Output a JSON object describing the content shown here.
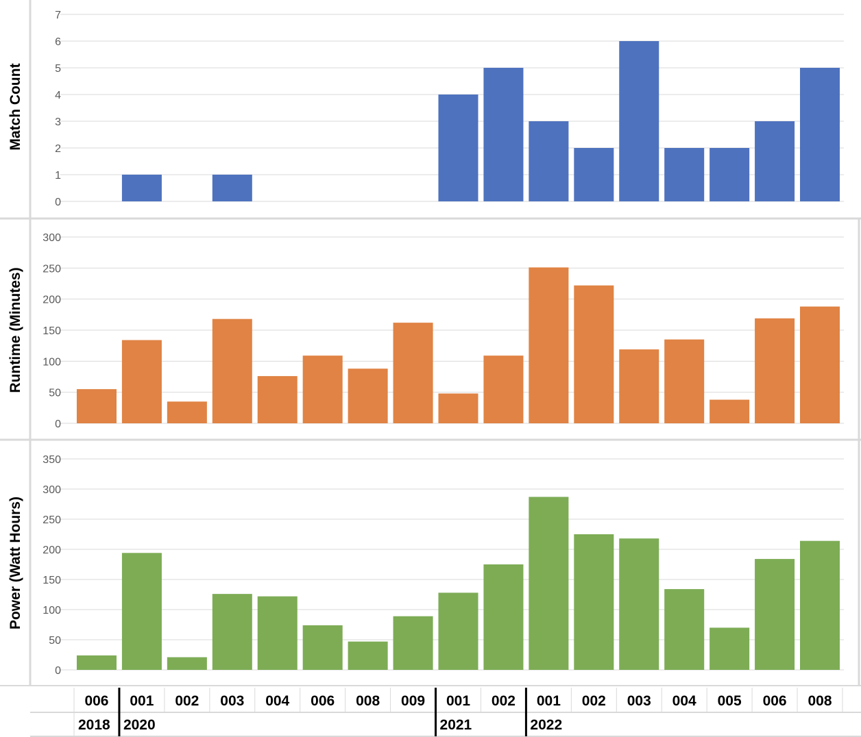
{
  "chart_data": {
    "type": "bar",
    "categories": [
      "006",
      "001",
      "002",
      "003",
      "004",
      "006",
      "008",
      "009",
      "001",
      "002",
      "001",
      "002",
      "003",
      "004",
      "005",
      "006",
      "008"
    ],
    "year_groups": [
      {
        "label": "2018",
        "start": 0,
        "end": 0
      },
      {
        "label": "2020",
        "start": 1,
        "end": 7
      },
      {
        "label": "2021",
        "start": 8,
        "end": 9
      },
      {
        "label": "2022",
        "start": 10,
        "end": 16
      }
    ],
    "panels": [
      {
        "ylabel": "Match Count",
        "color": "#4E72BE",
        "ylim": [
          0,
          7
        ],
        "yticks": [
          0,
          1,
          2,
          3,
          4,
          5,
          6,
          7
        ],
        "values": [
          0,
          1,
          0,
          1,
          0,
          0,
          0,
          0,
          4,
          5,
          3,
          2,
          6,
          2,
          2,
          3,
          5
        ]
      },
      {
        "ylabel": "Runtime (Minutes)",
        "color": "#E08344",
        "ylim": [
          0,
          300
        ],
        "yticks": [
          0,
          50,
          100,
          150,
          200,
          250,
          300
        ],
        "values": [
          55,
          134,
          35,
          168,
          76,
          109,
          88,
          162,
          48,
          109,
          251,
          222,
          119,
          135,
          38,
          169,
          188
        ]
      },
      {
        "ylabel": "Power (Watt Hours)",
        "color": "#7DAC55",
        "ylim": [
          0,
          350
        ],
        "yticks": [
          0,
          50,
          100,
          150,
          200,
          250,
          300,
          350
        ],
        "values": [
          24,
          194,
          21,
          126,
          122,
          74,
          47,
          89,
          128,
          175,
          287,
          225,
          218,
          134,
          70,
          184,
          214
        ]
      }
    ],
    "grid": true
  }
}
